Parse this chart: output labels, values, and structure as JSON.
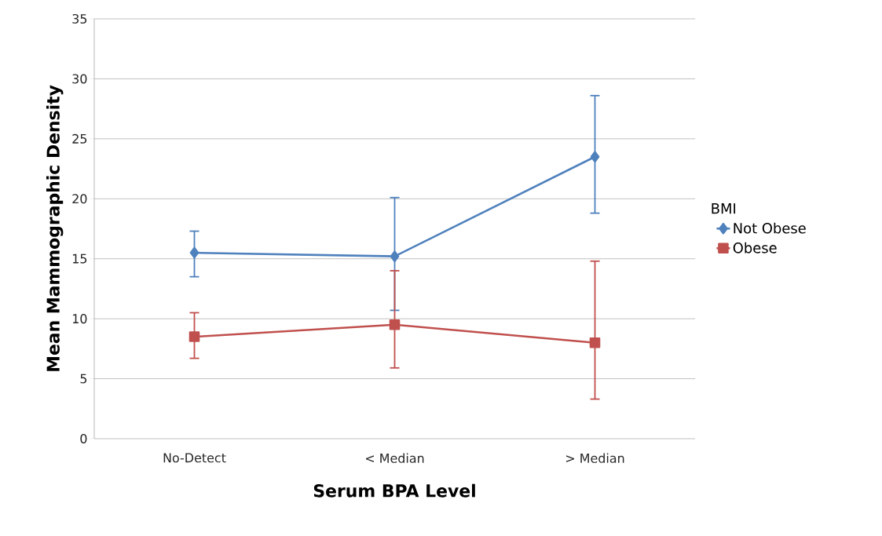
{
  "chart_data": {
    "type": "line",
    "xlabel": "Serum BPA Level",
    "ylabel": "Mean Mammographic Density",
    "legend_title": "BMI",
    "categories": [
      "No-Detect",
      "< Median",
      "> Median"
    ],
    "series": [
      {
        "name": "Not Obese",
        "color": "#4f81bd",
        "marker": "diamond",
        "values": [
          15.5,
          15.2,
          23.5
        ],
        "errors": [
          [
            13.5,
            17.3
          ],
          [
            10.7,
            20.1
          ],
          [
            18.8,
            28.6
          ]
        ]
      },
      {
        "name": "Obese",
        "color": "#c0504d",
        "marker": "square",
        "values": [
          8.5,
          9.5,
          8.0
        ],
        "errors": [
          [
            6.7,
            10.5
          ],
          [
            5.9,
            14.0
          ],
          [
            3.3,
            14.8
          ]
        ]
      }
    ],
    "ylim": [
      0,
      35
    ],
    "yticks": [
      0,
      5,
      10,
      15,
      20,
      25,
      30,
      35
    ],
    "grid": "y",
    "legend": "right",
    "line_style": "solid"
  }
}
